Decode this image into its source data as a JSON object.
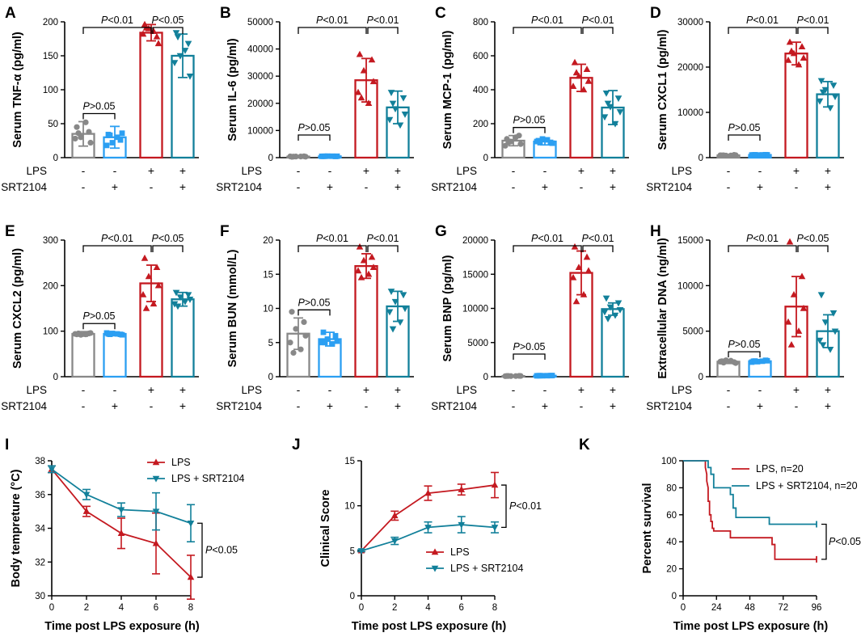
{
  "colors": {
    "ctrl": "#888888",
    "srt": "#2b9ff2",
    "lps": "#c41920",
    "both": "#12809a",
    "axis": "#000000"
  },
  "row_labels": {
    "lps": "LPS",
    "srt": "SRT2104"
  },
  "signs": {
    "plus": "+",
    "minus": "-"
  },
  "bar_panels": [
    {
      "letter": "A",
      "ylabel": "Serum TNF-α (pg/ml)",
      "ymax": 200,
      "ticks": [
        0,
        50,
        100,
        150,
        200
      ],
      "means": [
        35,
        30,
        184,
        150
      ],
      "sd": [
        18,
        16,
        12,
        32
      ],
      "points": [
        [
          45,
          38,
          30,
          22,
          28,
          52,
          36
        ],
        [
          34,
          26,
          22,
          36,
          18,
          30,
          33
        ],
        [
          196,
          178,
          190,
          168,
          182,
          186,
          191
        ],
        [
          184,
          168,
          150,
          120,
          140,
          158,
          178
        ]
      ],
      "top": {
        "text": "<0.01"
      },
      "right": {
        "text": "<0.05"
      },
      "low": {
        "text": ">0.05"
      }
    },
    {
      "letter": "B",
      "ylabel": "Serum IL-6 (pg/ml)",
      "ymax": 50000,
      "ticks": [
        0,
        10000,
        20000,
        30000,
        40000,
        50000
      ],
      "means": [
        400,
        500,
        28500,
        18500
      ],
      "sd": [
        200,
        200,
        8000,
        6000
      ],
      "points": [
        [
          300,
          500,
          400,
          350,
          450,
          420,
          380
        ],
        [
          500,
          450,
          550,
          520,
          480,
          530,
          510
        ],
        [
          38000,
          36000,
          32000,
          28000,
          24000,
          20000,
          22000
        ],
        [
          24000,
          22000,
          18000,
          16000,
          14000,
          12000,
          20000
        ]
      ],
      "top": {
        "text": "<0.01"
      },
      "right": {
        "text": "<0.01"
      },
      "low": {
        "text": ">0.05"
      }
    },
    {
      "letter": "C",
      "ylabel": "Serum MCP-1 (pg/ml)",
      "ymax": 800,
      "ticks": [
        0,
        200,
        400,
        600,
        800
      ],
      "means": [
        100,
        95,
        470,
        295
      ],
      "sd": [
        30,
        20,
        80,
        100
      ],
      "points": [
        [
          110,
          130,
          95,
          80,
          70,
          120,
          90
        ],
        [
          100,
          90,
          110,
          85,
          95,
          105,
          88
        ],
        [
          560,
          520,
          480,
          450,
          420,
          400,
          500
        ],
        [
          380,
          350,
          300,
          270,
          240,
          200,
          320
        ]
      ],
      "top": {
        "text": "<0.01"
      },
      "right": {
        "text": "<0.01"
      },
      "low": {
        "text": ">0.05"
      }
    },
    {
      "letter": "D",
      "ylabel": "Serum CXCL1 (pg/ml)",
      "ymax": 30000,
      "ticks": [
        0,
        10000,
        20000,
        30000
      ],
      "means": [
        500,
        600,
        23000,
        14000
      ],
      "sd": [
        200,
        200,
        2500,
        2800
      ],
      "points": [
        [
          500,
          600,
          450,
          550,
          520,
          480,
          510
        ],
        [
          600,
          650,
          580,
          620,
          590,
          610,
          630
        ],
        [
          25500,
          24500,
          23000,
          22000,
          21500,
          20500,
          23500
        ],
        [
          17000,
          16000,
          15000,
          13500,
          12500,
          11000,
          14500
        ]
      ],
      "top": {
        "text": "<0.01"
      },
      "right": {
        "text": "<0.01"
      },
      "low": {
        "text": ">0.05"
      }
    },
    {
      "letter": "E",
      "ylabel": "Serum CXCL2 (pg/ml)",
      "ymax": 300,
      "ticks": [
        0,
        100,
        200,
        300
      ],
      "means": [
        94,
        94,
        205,
        170
      ],
      "sd": [
        5,
        4,
        40,
        15
      ],
      "points": [
        [
          93,
          95,
          92,
          96,
          94,
          93,
          95
        ],
        [
          94,
          93,
          95,
          92,
          96,
          94,
          93
        ],
        [
          260,
          240,
          220,
          200,
          180,
          160,
          150
        ],
        [
          185,
          180,
          175,
          170,
          160,
          165,
          155
        ]
      ],
      "top": {
        "text": "<0.01"
      },
      "right": {
        "text": "<0.05"
      },
      "low": {
        "text": ">0.05"
      }
    },
    {
      "letter": "F",
      "ylabel": "Serum BUN (mmol/L)",
      "ymax": 20,
      "ticks": [
        0,
        5,
        10,
        15,
        20
      ],
      "means": [
        6.3,
        5.5,
        16.2,
        10.3
      ],
      "sd": [
        2.3,
        1.0,
        1.8,
        2.2
      ],
      "points": [
        [
          9.5,
          8.0,
          7.0,
          6.0,
          5.0,
          4.0,
          3.5
        ],
        [
          6.5,
          6.0,
          5.5,
          5.2,
          5.0,
          4.8,
          5.0
        ],
        [
          19.0,
          17.5,
          17.0,
          16.0,
          15.5,
          15.0,
          14.5
        ],
        [
          12.5,
          12.0,
          11.0,
          10.0,
          9.5,
          8.0,
          7.0
        ]
      ],
      "top": {
        "text": "<0.01"
      },
      "right": {
        "text": "<0.01"
      },
      "low": {
        "text": ">0.05"
      }
    },
    {
      "letter": "G",
      "ylabel": "Serum BNP (pg/ml)",
      "ymax": 20000,
      "ticks": [
        0,
        5000,
        10000,
        15000,
        20000
      ],
      "means": [
        100,
        150,
        15200,
        9900
      ],
      "sd": [
        60,
        60,
        3200,
        900
      ],
      "points": [
        [
          100,
          120,
          90,
          110,
          80,
          95,
          105
        ],
        [
          150,
          160,
          140,
          170,
          130,
          150,
          155
        ],
        [
          19000,
          17500,
          16000,
          15500,
          14500,
          12000,
          11000
        ],
        [
          11500,
          10800,
          10200,
          9800,
          9500,
          9000,
          8500
        ]
      ],
      "top": {
        "text": "<0.01"
      },
      "right": {
        "text": "<0.01"
      },
      "low": {
        "text": ">0.05"
      }
    },
    {
      "letter": "H",
      "ylabel": "Extracellular DNA (ng/ml)",
      "ymax": 15000,
      "ticks": [
        0,
        5000,
        10000,
        15000
      ],
      "means": [
        1650,
        1700,
        7700,
        5000
      ],
      "sd": [
        200,
        150,
        3300,
        1800
      ],
      "points": [
        [
          1700,
          1600,
          1800,
          1500,
          1650,
          1750,
          1550
        ],
        [
          1700,
          1800,
          1650,
          1750,
          1600,
          1700,
          1720
        ],
        [
          14800,
          11000,
          9000,
          7500,
          6000,
          5000,
          3500
        ],
        [
          9000,
          7000,
          6000,
          5000,
          4000,
          3000,
          3500
        ]
      ],
      "top": {
        "text": "<0.01"
      },
      "right": {
        "text": "<0.05"
      },
      "low": {
        "text": ">0.05"
      }
    }
  ],
  "chart_data": [
    {
      "type": "line",
      "panel": "I",
      "title": "",
      "xlabel": "Time post LPS exposure (h)",
      "ylabel": "Body tempreture (°C)",
      "x": [
        0,
        2,
        4,
        6,
        8
      ],
      "xlim": [
        0,
        8
      ],
      "ylim": [
        30,
        38
      ],
      "xticks": [
        0,
        2,
        4,
        6,
        8
      ],
      "yticks": [
        30,
        32,
        34,
        36,
        38
      ],
      "series": [
        {
          "name": "LPS",
          "values": [
            37.5,
            35.0,
            33.7,
            33.1,
            31.1
          ],
          "err": [
            0.2,
            0.3,
            0.9,
            1.8,
            1.3
          ]
        },
        {
          "name": "LPS + SRT2104",
          "values": [
            37.5,
            36.0,
            35.1,
            35.0,
            34.3
          ],
          "err": [
            0.2,
            0.3,
            0.4,
            1.1,
            1.1
          ]
        }
      ],
      "annotation": "<0.05"
    },
    {
      "type": "line",
      "panel": "J",
      "title": "",
      "xlabel": "Time post LPS exposure (h)",
      "ylabel": "Clinical Score",
      "x": [
        0,
        2,
        4,
        6,
        8
      ],
      "xlim": [
        0,
        8
      ],
      "ylim": [
        0,
        15
      ],
      "xticks": [
        0,
        2,
        4,
        6,
        8
      ],
      "yticks": [
        0,
        5,
        10,
        15
      ],
      "series": [
        {
          "name": "LPS",
          "values": [
            5,
            8.9,
            11.4,
            11.8,
            12.3
          ],
          "err": [
            0.1,
            0.5,
            0.8,
            0.6,
            1.4
          ]
        },
        {
          "name": "LPS + SRT2104",
          "values": [
            5,
            6.1,
            7.6,
            7.9,
            7.6
          ],
          "err": [
            0.1,
            0.4,
            0.6,
            0.9,
            0.6
          ]
        }
      ],
      "annotation": "<0.01"
    },
    {
      "type": "line",
      "panel": "K",
      "title": "",
      "xlabel": "Time post LPS exposure (h)",
      "ylabel": "Percent survival",
      "xlim": [
        0,
        96
      ],
      "ylim": [
        0,
        100
      ],
      "xticks": [
        0,
        24,
        48,
        72,
        96
      ],
      "yticks": [
        0,
        20,
        40,
        60,
        80,
        100
      ],
      "series": [
        {
          "name": "LPS, n=20",
          "steps": [
            [
              0,
              100
            ],
            [
              16,
              100
            ],
            [
              16,
              95
            ],
            [
              17,
              90
            ],
            [
              17,
              85
            ],
            [
              18,
              80
            ],
            [
              18,
              75
            ],
            [
              18,
              70
            ],
            [
              19,
              70
            ],
            [
              19,
              65
            ],
            [
              19,
              60
            ],
            [
              20,
              60
            ],
            [
              20,
              55
            ],
            [
              21,
              55
            ],
            [
              21,
              50
            ],
            [
              22,
              50
            ],
            [
              22,
              48
            ],
            [
              34,
              48
            ],
            [
              34,
              43
            ],
            [
              64,
              43
            ],
            [
              64,
              38
            ],
            [
              66,
              38
            ],
            [
              66,
              27
            ],
            [
              96,
              27
            ]
          ]
        },
        {
          "name": "LPS + SRT2104, n=20",
          "steps": [
            [
              0,
              100
            ],
            [
              18,
              100
            ],
            [
              18,
              95
            ],
            [
              20,
              95
            ],
            [
              20,
              90
            ],
            [
              22,
              90
            ],
            [
              22,
              80
            ],
            [
              34,
              80
            ],
            [
              34,
              75
            ],
            [
              36,
              75
            ],
            [
              36,
              65
            ],
            [
              38,
              65
            ],
            [
              38,
              58
            ],
            [
              62,
              58
            ],
            [
              62,
              53
            ],
            [
              96,
              53
            ]
          ]
        }
      ],
      "annotation": "<0.05"
    }
  ]
}
